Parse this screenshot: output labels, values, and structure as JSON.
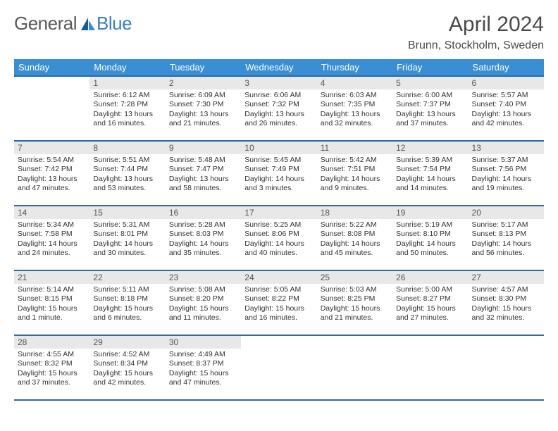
{
  "logo": {
    "text1": "General",
    "text2": "Blue"
  },
  "title": "April 2024",
  "location": "Brunn, Stockholm, Sweden",
  "colors": {
    "header_bg": "#3a8fd4",
    "header_text": "#ffffff",
    "row_border": "#2a6aa8",
    "daynum_bg": "#e8e8e8",
    "text": "#333333",
    "logo_gray": "#5a5a5a",
    "logo_blue": "#3a7fc4"
  },
  "weekday_headers": [
    "Sunday",
    "Monday",
    "Tuesday",
    "Wednesday",
    "Thursday",
    "Friday",
    "Saturday"
  ],
  "weeks": [
    [
      null,
      {
        "n": "1",
        "sunrise": "6:12 AM",
        "sunset": "7:28 PM",
        "daylight": "13 hours and 16 minutes."
      },
      {
        "n": "2",
        "sunrise": "6:09 AM",
        "sunset": "7:30 PM",
        "daylight": "13 hours and 21 minutes."
      },
      {
        "n": "3",
        "sunrise": "6:06 AM",
        "sunset": "7:32 PM",
        "daylight": "13 hours and 26 minutes."
      },
      {
        "n": "4",
        "sunrise": "6:03 AM",
        "sunset": "7:35 PM",
        "daylight": "13 hours and 32 minutes."
      },
      {
        "n": "5",
        "sunrise": "6:00 AM",
        "sunset": "7:37 PM",
        "daylight": "13 hours and 37 minutes."
      },
      {
        "n": "6",
        "sunrise": "5:57 AM",
        "sunset": "7:40 PM",
        "daylight": "13 hours and 42 minutes."
      }
    ],
    [
      {
        "n": "7",
        "sunrise": "5:54 AM",
        "sunset": "7:42 PM",
        "daylight": "13 hours and 47 minutes."
      },
      {
        "n": "8",
        "sunrise": "5:51 AM",
        "sunset": "7:44 PM",
        "daylight": "13 hours and 53 minutes."
      },
      {
        "n": "9",
        "sunrise": "5:48 AM",
        "sunset": "7:47 PM",
        "daylight": "13 hours and 58 minutes."
      },
      {
        "n": "10",
        "sunrise": "5:45 AM",
        "sunset": "7:49 PM",
        "daylight": "14 hours and 3 minutes."
      },
      {
        "n": "11",
        "sunrise": "5:42 AM",
        "sunset": "7:51 PM",
        "daylight": "14 hours and 9 minutes."
      },
      {
        "n": "12",
        "sunrise": "5:39 AM",
        "sunset": "7:54 PM",
        "daylight": "14 hours and 14 minutes."
      },
      {
        "n": "13",
        "sunrise": "5:37 AM",
        "sunset": "7:56 PM",
        "daylight": "14 hours and 19 minutes."
      }
    ],
    [
      {
        "n": "14",
        "sunrise": "5:34 AM",
        "sunset": "7:58 PM",
        "daylight": "14 hours and 24 minutes."
      },
      {
        "n": "15",
        "sunrise": "5:31 AM",
        "sunset": "8:01 PM",
        "daylight": "14 hours and 30 minutes."
      },
      {
        "n": "16",
        "sunrise": "5:28 AM",
        "sunset": "8:03 PM",
        "daylight": "14 hours and 35 minutes."
      },
      {
        "n": "17",
        "sunrise": "5:25 AM",
        "sunset": "8:06 PM",
        "daylight": "14 hours and 40 minutes."
      },
      {
        "n": "18",
        "sunrise": "5:22 AM",
        "sunset": "8:08 PM",
        "daylight": "14 hours and 45 minutes."
      },
      {
        "n": "19",
        "sunrise": "5:19 AM",
        "sunset": "8:10 PM",
        "daylight": "14 hours and 50 minutes."
      },
      {
        "n": "20",
        "sunrise": "5:17 AM",
        "sunset": "8:13 PM",
        "daylight": "14 hours and 56 minutes."
      }
    ],
    [
      {
        "n": "21",
        "sunrise": "5:14 AM",
        "sunset": "8:15 PM",
        "daylight": "15 hours and 1 minute."
      },
      {
        "n": "22",
        "sunrise": "5:11 AM",
        "sunset": "8:18 PM",
        "daylight": "15 hours and 6 minutes."
      },
      {
        "n": "23",
        "sunrise": "5:08 AM",
        "sunset": "8:20 PM",
        "daylight": "15 hours and 11 minutes."
      },
      {
        "n": "24",
        "sunrise": "5:05 AM",
        "sunset": "8:22 PM",
        "daylight": "15 hours and 16 minutes."
      },
      {
        "n": "25",
        "sunrise": "5:03 AM",
        "sunset": "8:25 PM",
        "daylight": "15 hours and 21 minutes."
      },
      {
        "n": "26",
        "sunrise": "5:00 AM",
        "sunset": "8:27 PM",
        "daylight": "15 hours and 27 minutes."
      },
      {
        "n": "27",
        "sunrise": "4:57 AM",
        "sunset": "8:30 PM",
        "daylight": "15 hours and 32 minutes."
      }
    ],
    [
      {
        "n": "28",
        "sunrise": "4:55 AM",
        "sunset": "8:32 PM",
        "daylight": "15 hours and 37 minutes."
      },
      {
        "n": "29",
        "sunrise": "4:52 AM",
        "sunset": "8:34 PM",
        "daylight": "15 hours and 42 minutes."
      },
      {
        "n": "30",
        "sunrise": "4:49 AM",
        "sunset": "8:37 PM",
        "daylight": "15 hours and 47 minutes."
      },
      null,
      null,
      null,
      null
    ]
  ],
  "labels": {
    "sunrise": "Sunrise: ",
    "sunset": "Sunset: ",
    "daylight": "Daylight: "
  }
}
